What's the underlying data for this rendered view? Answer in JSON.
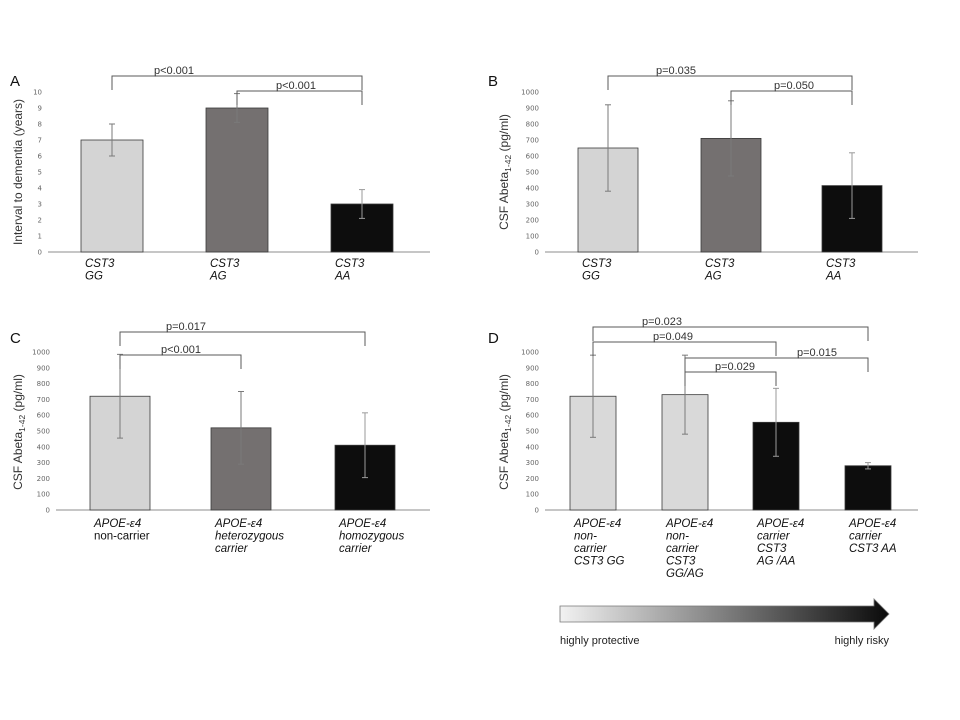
{
  "chart_data": [
    {
      "panel": "A",
      "type": "bar",
      "ylabel": "Interval to dementia (years)",
      "ylim": [
        0,
        10
      ],
      "yticks": [
        0,
        1,
        2,
        3,
        4,
        5,
        6,
        7,
        8,
        9,
        10
      ],
      "categories": [
        {
          "lines": [
            "CST3",
            "GG"
          ],
          "italic": [
            true,
            true
          ]
        },
        {
          "lines": [
            "CST3",
            "AG"
          ],
          "italic": [
            true,
            true
          ]
        },
        {
          "lines": [
            "CST3",
            "AA"
          ],
          "italic": [
            true,
            true
          ]
        }
      ],
      "values": [
        7.0,
        9.0,
        3.0
      ],
      "errors": [
        1.0,
        0.9,
        0.9
      ],
      "colors": [
        "#d4d4d4",
        "#747070",
        "#0d0d0d"
      ],
      "comparisons": [
        {
          "from": 0,
          "to": 2,
          "label": "p<0.001"
        },
        {
          "from": 1,
          "to": 2,
          "label": "p<0.001"
        }
      ]
    },
    {
      "panel": "B",
      "type": "bar",
      "ylabel": "CSF Abeta1-42 (pg/ml)",
      "ylabel_parts": [
        "CSF Abeta",
        "1-42",
        " (pg/ml)"
      ],
      "ylim": [
        0,
        1000
      ],
      "yticks": [
        0,
        100,
        200,
        300,
        400,
        500,
        600,
        700,
        800,
        900,
        1000
      ],
      "categories": [
        {
          "lines": [
            "CST3",
            "GG"
          ],
          "italic": [
            true,
            true
          ]
        },
        {
          "lines": [
            "CST3",
            "AG"
          ],
          "italic": [
            true,
            true
          ]
        },
        {
          "lines": [
            "CST3",
            "AA"
          ],
          "italic": [
            true,
            true
          ]
        }
      ],
      "values": [
        650,
        710,
        415
      ],
      "errors": [
        270,
        235,
        205
      ],
      "colors": [
        "#d4d4d4",
        "#747070",
        "#0d0d0d"
      ],
      "comparisons": [
        {
          "from": 0,
          "to": 2,
          "label": "p=0.035"
        },
        {
          "from": 1,
          "to": 2,
          "label": "p=0.050"
        }
      ]
    },
    {
      "panel": "C",
      "type": "bar",
      "ylabel": "CSF Abeta1-42 (pg/ml)",
      "ylabel_parts": [
        "CSF Abeta",
        "1-42",
        " (pg/ml)"
      ],
      "ylim": [
        0,
        1000
      ],
      "yticks": [
        0,
        100,
        200,
        300,
        400,
        500,
        600,
        700,
        800,
        900,
        1000
      ],
      "categories": [
        {
          "lines": [
            "APOE-ε4",
            "non-carrier"
          ],
          "italic": [
            true,
            false
          ]
        },
        {
          "lines": [
            "APOE-ε4",
            "heterozygous",
            "carrier"
          ],
          "italic": [
            true,
            true,
            true
          ]
        },
        {
          "lines": [
            "APOE-ε4",
            "homozygous",
            "carrier"
          ],
          "italic": [
            true,
            true,
            true
          ]
        }
      ],
      "values": [
        720,
        520,
        410
      ],
      "errors": [
        265,
        230,
        205
      ],
      "colors": [
        "#d4d4d4",
        "#747070",
        "#0d0d0d"
      ],
      "comparisons": [
        {
          "from": 0,
          "to": 2,
          "label": "p=0.017"
        },
        {
          "from": 0,
          "to": 1,
          "label": "p<0.001"
        }
      ]
    },
    {
      "panel": "D",
      "type": "bar",
      "ylabel": "CSF Abeta1-42 (pg/ml)",
      "ylabel_parts": [
        "CSF Abeta",
        "1-42",
        " (pg/ml)"
      ],
      "ylim": [
        0,
        1000
      ],
      "yticks": [
        0,
        100,
        200,
        300,
        400,
        500,
        600,
        700,
        800,
        900,
        1000
      ],
      "categories": [
        {
          "lines": [
            "APOE-ε4",
            " non-",
            "carrier",
            "CST3 GG"
          ],
          "italic": [
            true,
            true,
            true,
            true
          ]
        },
        {
          "lines": [
            "APOE-ε4",
            "non-",
            "carrier",
            "CST3",
            "GG/AG"
          ],
          "italic": [
            true,
            true,
            true,
            true,
            true
          ]
        },
        {
          "lines": [
            "APOE-ε4",
            "carrier",
            "CST3",
            "AG /AA"
          ],
          "italic": [
            true,
            true,
            true,
            true
          ]
        },
        {
          "lines": [
            "APOE-ε4",
            "carrier",
            "CST3 AA"
          ],
          "italic": [
            true,
            true,
            true,
            true
          ]
        }
      ],
      "values": [
        720,
        730,
        555,
        280
      ],
      "errors": [
        260,
        250,
        215,
        20
      ],
      "colors": [
        "#d9d9d9",
        "#d9d9d9",
        "#0d0d0d",
        "#0d0d0d"
      ],
      "comparisons": [
        {
          "from": 0,
          "to": 3,
          "label": "p=0.023"
        },
        {
          "from": 0,
          "to": 2,
          "label": "p=0.049"
        },
        {
          "from": 1,
          "to": 3,
          "label": "p=0.015"
        },
        {
          "from": 1,
          "to": 2,
          "label": "p=0.029"
        }
      ],
      "gradient_scale": {
        "left_label": "highly protective",
        "right_label": "highly risky"
      }
    }
  ],
  "colors": {
    "bar_light": "#d4d4d4",
    "bar_mid": "#747070",
    "bar_dark": "#0d0d0d",
    "axis": "#8c8c8c",
    "bracket": "#595959"
  }
}
